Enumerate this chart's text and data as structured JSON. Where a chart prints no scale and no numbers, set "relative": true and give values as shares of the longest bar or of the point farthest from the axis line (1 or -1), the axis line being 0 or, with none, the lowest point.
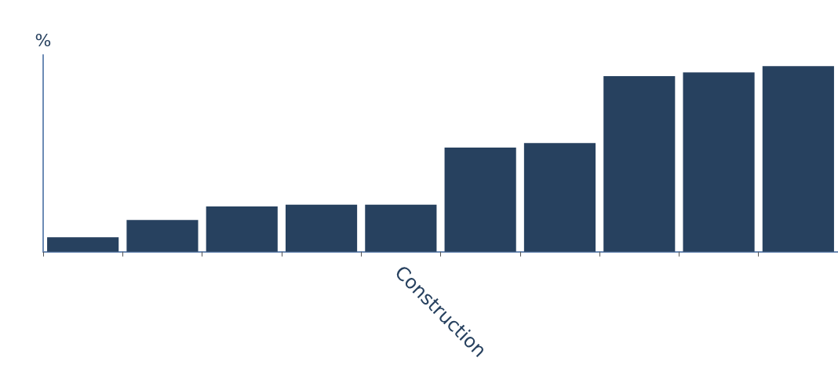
{
  "chart_data": {
    "type": "bar",
    "relative": true,
    "xlabel": "Construction",
    "ylabel": "%",
    "categories": [
      null,
      null,
      null,
      null,
      null,
      null,
      null,
      null,
      null,
      null
    ],
    "values": [
      0.078,
      0.171,
      0.244,
      0.254,
      0.254,
      0.561,
      0.585,
      0.946,
      0.966,
      1
    ],
    "color": "#27415f",
    "grid": false
  }
}
